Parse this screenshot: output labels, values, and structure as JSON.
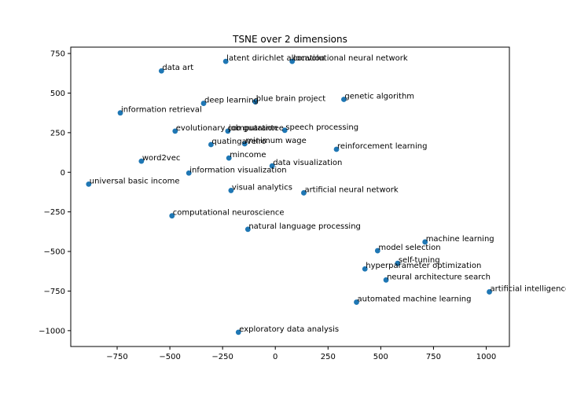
{
  "chart_data": {
    "type": "scatter",
    "title": "TSNE over 2 dimensions",
    "xlabel": "",
    "ylabel": "",
    "xlim": [
      -970,
      1110
    ],
    "ylim": [
      -1100,
      790
    ],
    "x_ticks": [
      -750,
      -500,
      -250,
      0,
      250,
      500,
      750,
      1000
    ],
    "y_ticks": [
      750,
      500,
      250,
      0,
      -250,
      -500,
      -750,
      -1000
    ],
    "x_tick_labels": [
      "−750",
      "−500",
      "−250",
      "0",
      "250",
      "500",
      "750",
      "1000"
    ],
    "y_tick_labels": [
      "750",
      "500",
      "250",
      "0",
      "−250",
      "−500",
      "−750",
      "−1000"
    ],
    "grid": false,
    "point_color": "#1f77b4",
    "points": [
      {
        "label": "latent dirichlet allocation",
        "x": -235,
        "y": 700
      },
      {
        "label": "convolutional neural network",
        "x": 80,
        "y": 700
      },
      {
        "label": "data art",
        "x": -540,
        "y": 640
      },
      {
        "label": "genetic algorithm",
        "x": 325,
        "y": 460
      },
      {
        "label": "blue brain project",
        "x": -95,
        "y": 445
      },
      {
        "label": "deep learning",
        "x": -340,
        "y": 435
      },
      {
        "label": "information retrieval",
        "x": -735,
        "y": 375
      },
      {
        "label": "evolutionary computation",
        "x": -475,
        "y": 260
      },
      {
        "label": "job guarantee",
        "x": -225,
        "y": 260
      },
      {
        "label": "speech processing",
        "x": 45,
        "y": 265
      },
      {
        "label": "quatingaveiro",
        "x": -305,
        "y": 175
      },
      {
        "label": "minimum wage",
        "x": -145,
        "y": 180
      },
      {
        "label": "reinforcement learning",
        "x": 290,
        "y": 145
      },
      {
        "label": "mincome",
        "x": -220,
        "y": 90
      },
      {
        "label": "data visualization",
        "x": -15,
        "y": 40
      },
      {
        "label": "word2vec",
        "x": -635,
        "y": 70
      },
      {
        "label": "information visualization",
        "x": -410,
        "y": -5
      },
      {
        "label": "universal basic income",
        "x": -885,
        "y": -75
      },
      {
        "label": "visual analytics",
        "x": -210,
        "y": -115
      },
      {
        "label": "artificial neural network",
        "x": 135,
        "y": -130
      },
      {
        "label": "computational neuroscience",
        "x": -490,
        "y": -275
      },
      {
        "label": "natural language processing",
        "x": -130,
        "y": -360
      },
      {
        "label": "machine learning",
        "x": 710,
        "y": -440
      },
      {
        "label": "model selection",
        "x": 485,
        "y": -495
      },
      {
        "label": "self-tuning",
        "x": 580,
        "y": -575
      },
      {
        "label": "hyperparameter optimization",
        "x": 425,
        "y": -610
      },
      {
        "label": "neural architecture search",
        "x": 525,
        "y": -680
      },
      {
        "label": "artificial intelligence",
        "x": 1015,
        "y": -755
      },
      {
        "label": "automated machine learning",
        "x": 385,
        "y": -820
      },
      {
        "label": "exploratory data analysis",
        "x": -175,
        "y": -1010
      }
    ]
  }
}
